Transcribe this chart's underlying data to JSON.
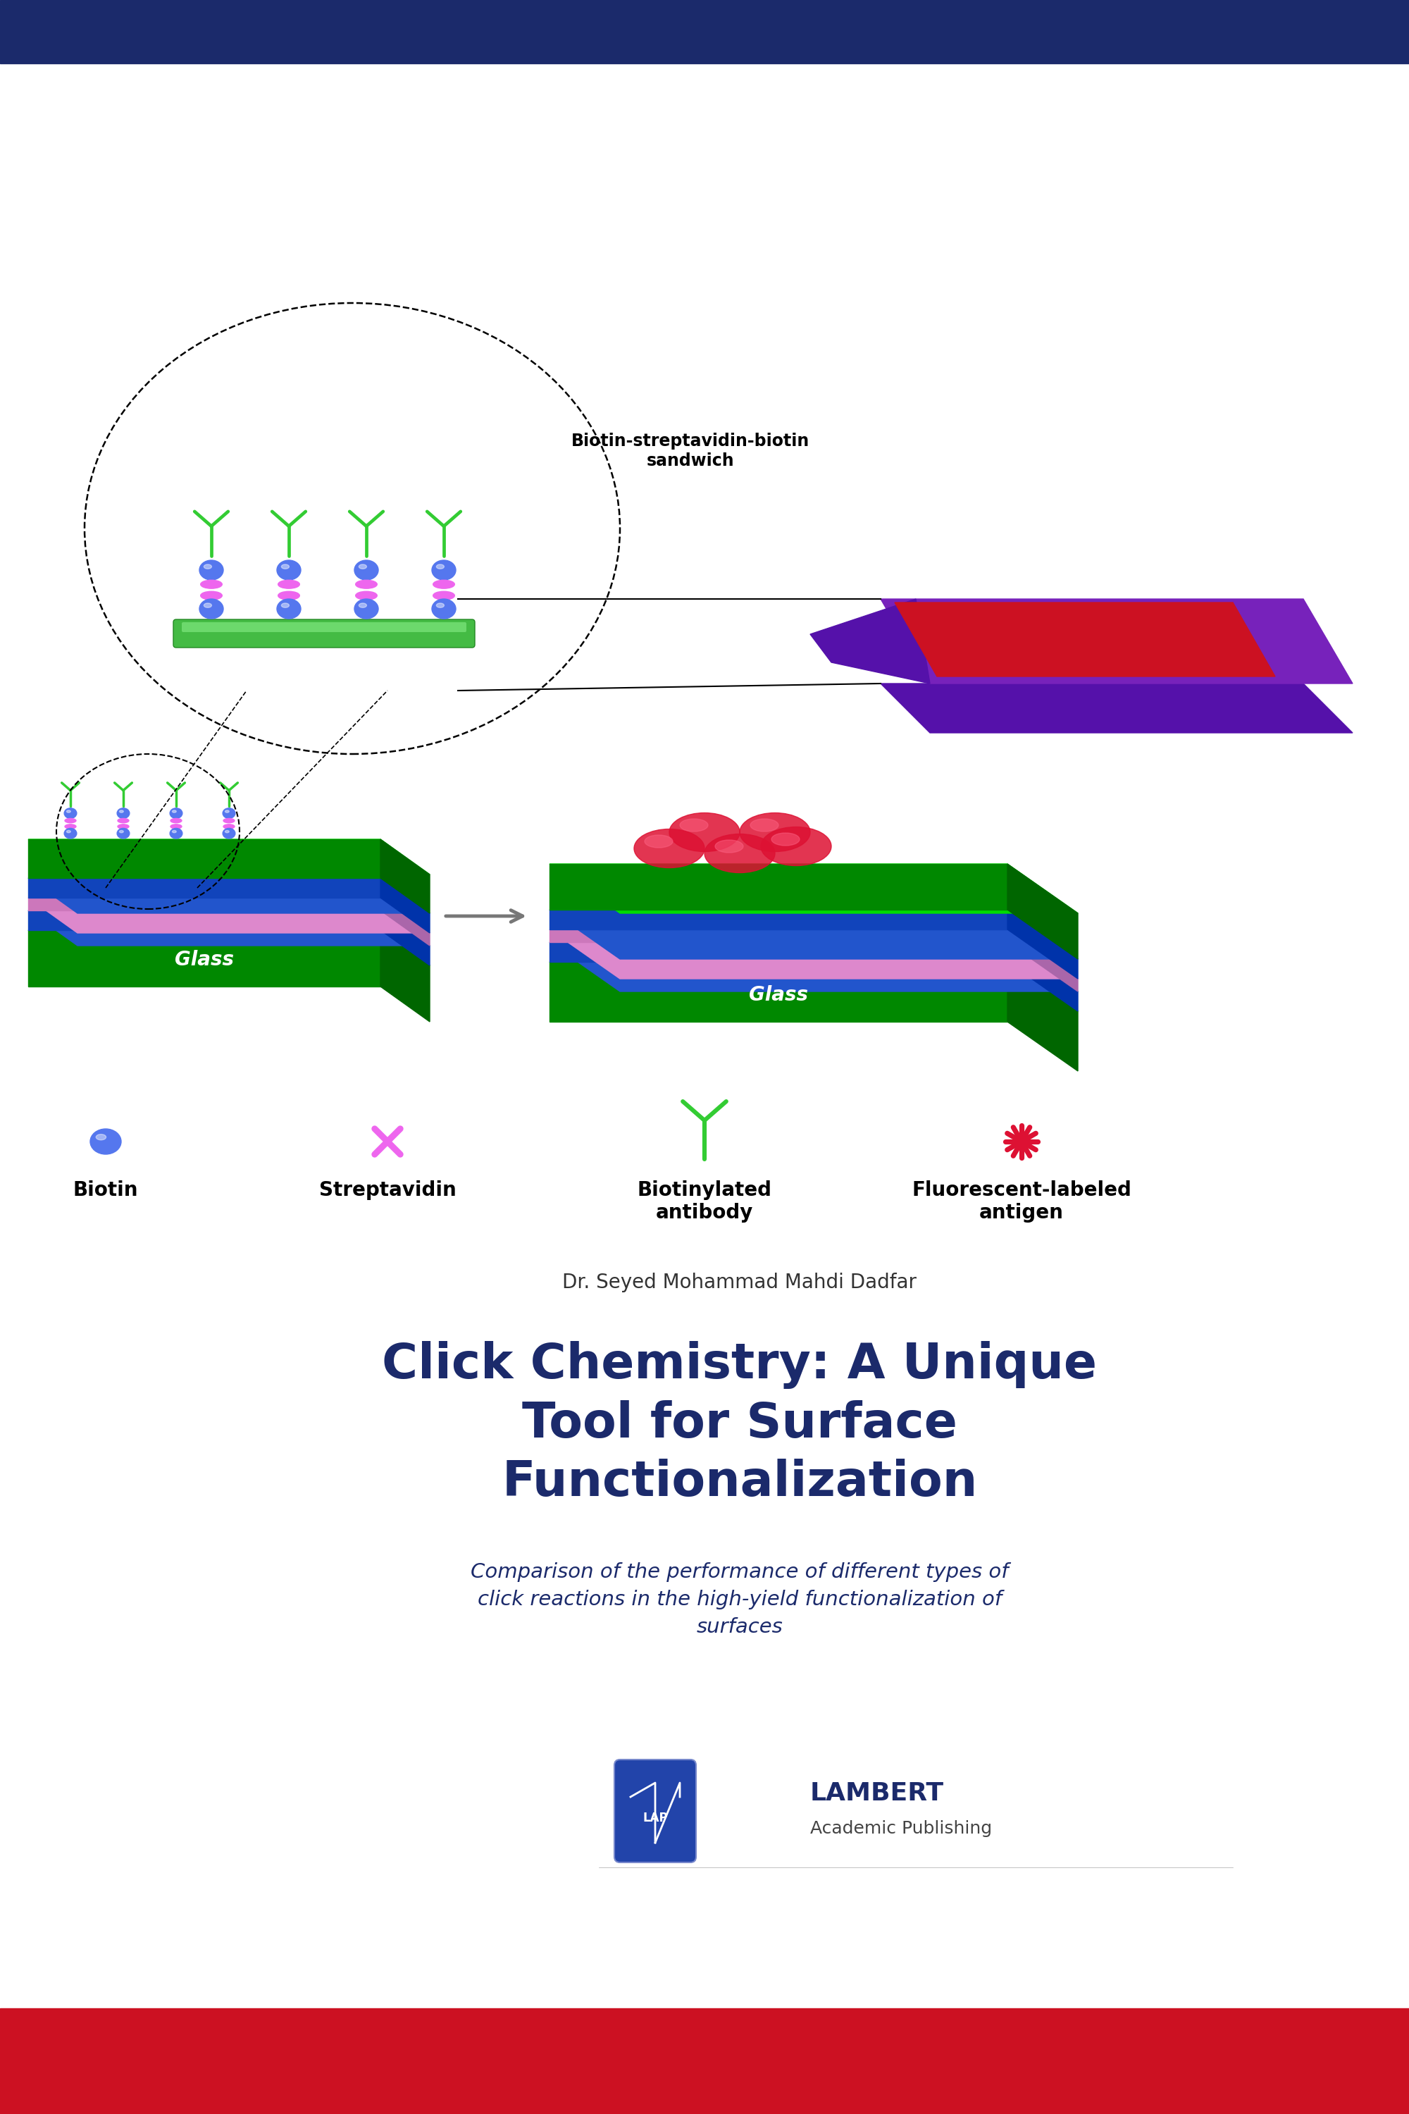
{
  "bg_color": "#ffffff",
  "top_bar_color": "#1b2a6b",
  "bottom_bar_color": "#cc1122",
  "title": "Click Chemistry: A Unique\nTool for Surface\nFunctionalization",
  "subtitle": "Comparison of the performance of different types of\nclick reactions in the high-yield functionalization of\nsurfaces",
  "author": "Dr. Seyed Mohammad Mahdi Dadfar",
  "title_color": "#1b2a6b",
  "subtitle_color": "#1b2a6b",
  "author_color": "#333333",
  "biotin_label": "Biotin",
  "streptavidin_label": "Streptavidin",
  "biotinylated_label": "Biotinylated\nantibody",
  "fluorescent_label": "Fluorescent-labeled\nantigen",
  "sandwich_label": "Biotin-streptavidin-biotin\nsandwich",
  "green_bright": "#00dd00",
  "green_dark": "#008800",
  "green_side": "#006600",
  "blue_sphere": "#5577ee",
  "pink_strep": "#ee66ee",
  "antibody_green": "#33cc33",
  "red_antigen": "#dd1133",
  "purple_slide": "#7722bb",
  "blue_layer": "#2255cc",
  "pink_layer": "#dd88cc"
}
